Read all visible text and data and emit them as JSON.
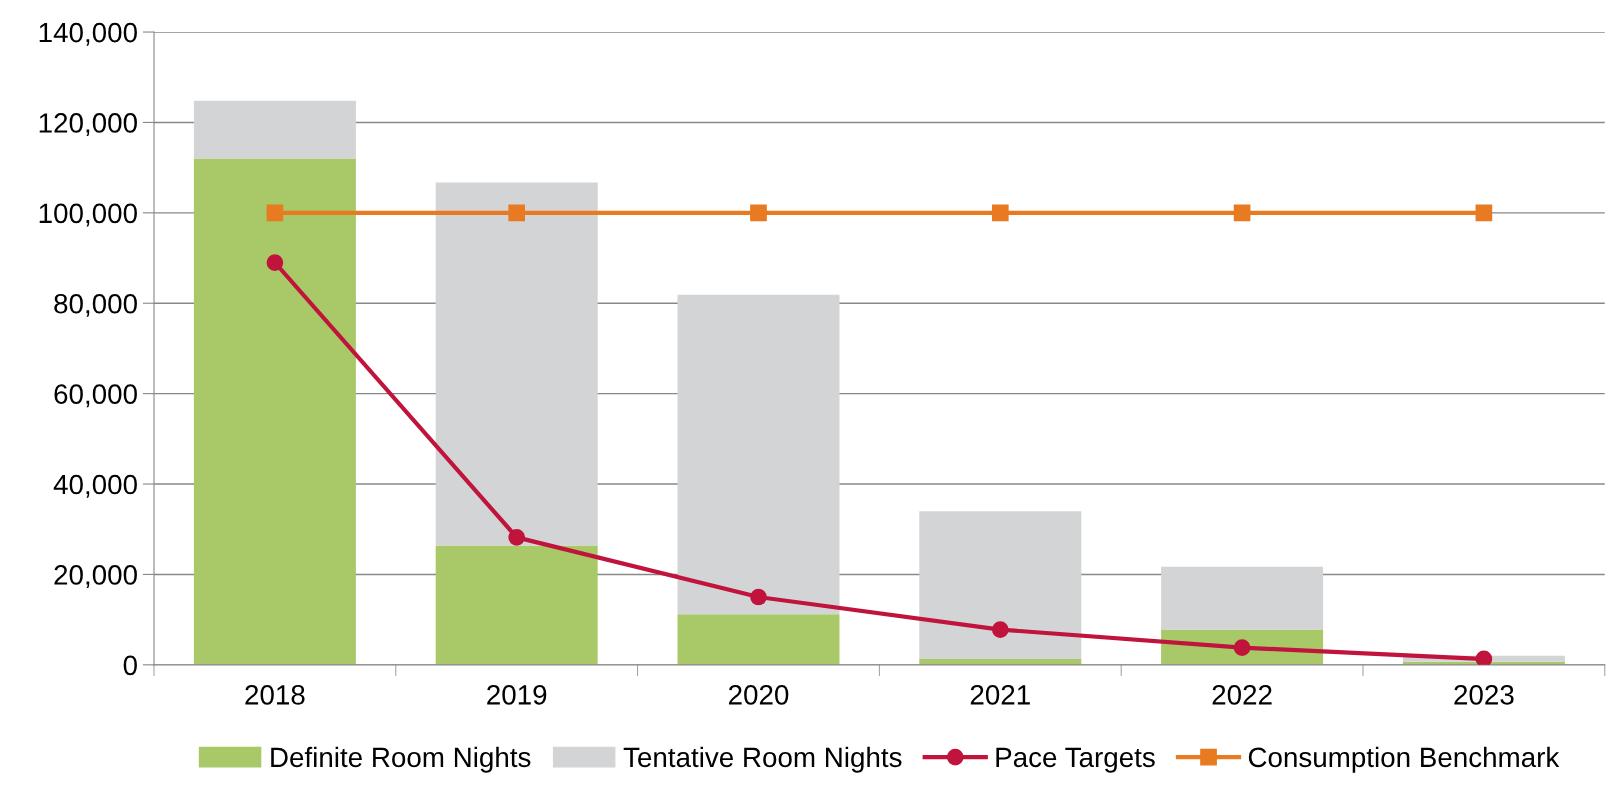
{
  "chart_data": {
    "type": "bar",
    "stacked": true,
    "categories": [
      "2018",
      "2019",
      "2020",
      "2021",
      "2022",
      "2023"
    ],
    "series": [
      {
        "name": "Definite Room Nights",
        "color": "#a9c868",
        "values": [
          112000,
          26400,
          11200,
          1300,
          7800,
          700
        ]
      },
      {
        "name": "Tentative Room Nights",
        "color": "#d3d4d6",
        "values": [
          12800,
          80300,
          70700,
          32700,
          13900,
          1300
        ]
      },
      {
        "name": "Pace Targets",
        "type": "line",
        "color": "#c0143c",
        "marker": "circle",
        "values": [
          89000,
          28200,
          15000,
          7800,
          3800,
          1300
        ]
      },
      {
        "name": "Consumption Benchmark",
        "type": "line",
        "color": "#e87a22",
        "marker": "square",
        "values": [
          100000,
          100000,
          100000,
          100000,
          100000,
          100000
        ]
      }
    ],
    "ylim": [
      0,
      140000
    ],
    "yticks": [
      {
        "value": 0,
        "label": "0"
      },
      {
        "value": 20000,
        "label": "20,000"
      },
      {
        "value": 40000,
        "label": "40,000"
      },
      {
        "value": 60000,
        "label": "60,000"
      },
      {
        "value": 80000,
        "label": "80,000"
      },
      {
        "value": 100000,
        "label": "100,000"
      },
      {
        "value": 120000,
        "label": "120,000"
      },
      {
        "value": 140000,
        "label": "140,000"
      }
    ],
    "grid": "y",
    "legend": "bottom"
  }
}
